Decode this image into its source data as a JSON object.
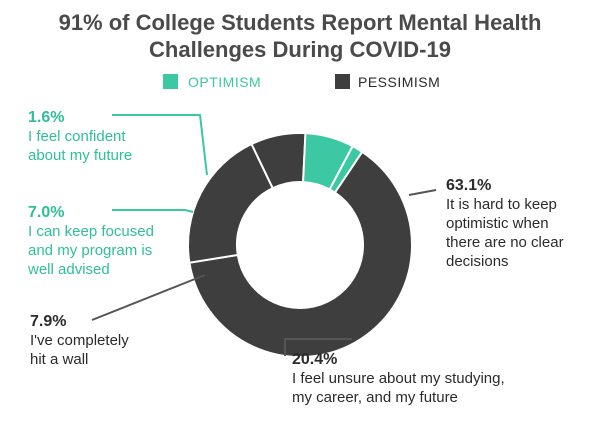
{
  "title_line1": "91% of College Students Report Mental Health",
  "title_line2": "Challenges During COVID-19",
  "colors": {
    "optimism": "#3cc8a3",
    "pessimism": "#3e3e3e",
    "text_dark": "#2b2b2b",
    "text_teal": "#2fbf9b"
  },
  "legend": {
    "optimism": "OPTIMISM",
    "pessimism": "PESSIMISM"
  },
  "chart_data": {
    "type": "pie",
    "style": "donut",
    "slices": [
      {
        "value": 1.6,
        "label": "1.6%",
        "group": "optimism",
        "desc": [
          "I feel confident",
          "about my future"
        ]
      },
      {
        "value": 63.1,
        "label": "63.1%",
        "group": "pessimism",
        "desc": [
          "It is hard to keep",
          "optimistic when",
          "there are no clear",
          "decisions"
        ]
      },
      {
        "value": 20.4,
        "label": "20.4%",
        "group": "pessimism",
        "desc": [
          "I feel unsure about my studying,",
          "my career, and my future"
        ]
      },
      {
        "value": 7.9,
        "label": "7.9%",
        "group": "pessimism",
        "desc": [
          "I've completely",
          "hit a wall"
        ]
      },
      {
        "value": 7.0,
        "label": "7.0%",
        "group": "optimism",
        "desc": [
          "I can keep focused",
          "and my program is",
          "well advised"
        ]
      }
    ]
  }
}
